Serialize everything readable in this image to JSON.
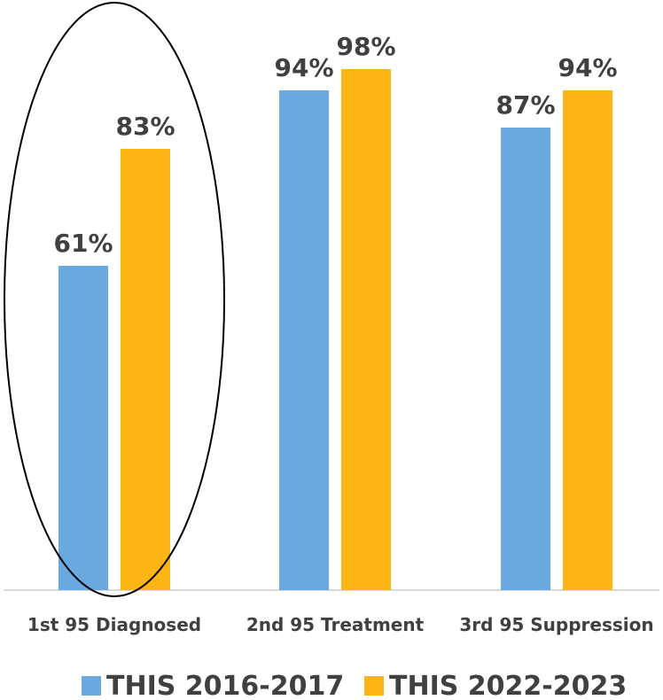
{
  "chart_data": {
    "type": "bar",
    "categories": [
      "1st 95 Diagnosed",
      "2nd 95 Treatment",
      "3rd 95 Suppression"
    ],
    "series": [
      {
        "name": "THIS 2016-2017",
        "values": [
          61,
          94,
          87
        ],
        "labels": [
          "61%",
          "94%",
          "87%"
        ],
        "color": "#6AA8E0"
      },
      {
        "name": "THIS 2022-2023",
        "values": [
          83,
          98,
          94
        ],
        "labels": [
          "83%",
          "98%",
          "94%"
        ],
        "color": "#FDB515"
      }
    ],
    "title": "",
    "xlabel": "",
    "ylabel": "",
    "ylim": [
      0,
      100
    ],
    "grid": false,
    "y_axis_visible": false,
    "legend": "bottom",
    "annotation": {
      "type": "ellipse",
      "around_category": "1st 95 Diagnosed"
    },
    "axis_color": "#D9D9D9",
    "text_color": "#404040"
  }
}
